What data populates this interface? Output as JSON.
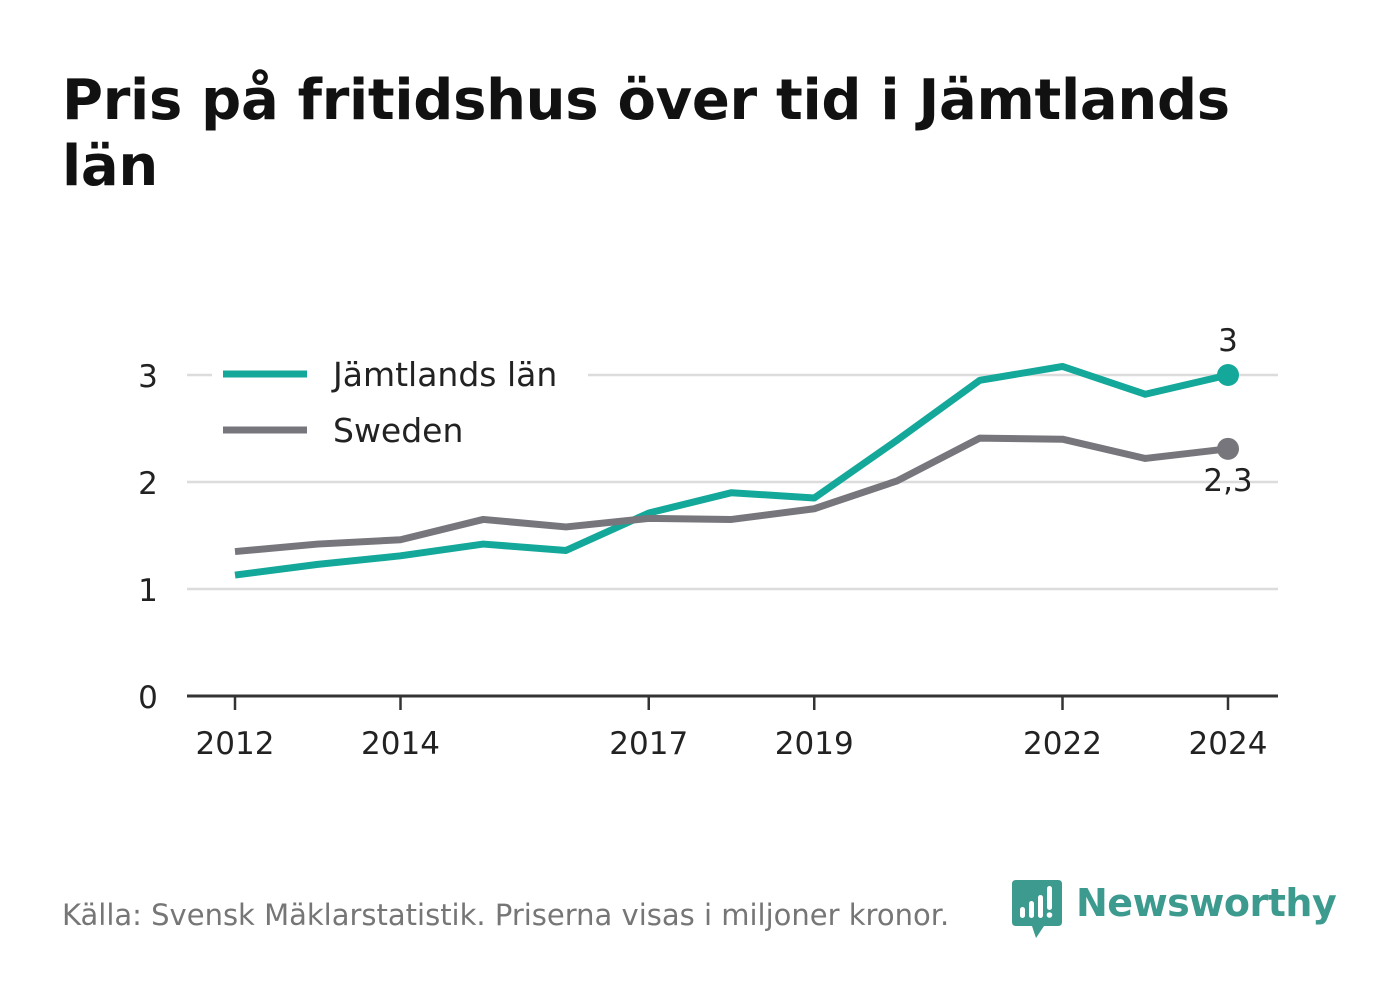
{
  "title": "Pris på fritidshus över tid i Jämtlands län",
  "source": "Källa: Svensk Mäklarstatistik. Priserna visas i miljoner kronor.",
  "brand": {
    "name": "Newsworthy",
    "color": "#3c9a8f",
    "icon": "newsworthy-logo-icon"
  },
  "chart_data": {
    "type": "line",
    "x": [
      2012,
      2013,
      2014,
      2015,
      2016,
      2017,
      2018,
      2019,
      2020,
      2021,
      2022,
      2023,
      2024
    ],
    "x_ticks": [
      "2012",
      "2014",
      "2017",
      "2019",
      "2022",
      "2024"
    ],
    "y_ticks": [
      "0",
      "1",
      "2",
      "3"
    ],
    "ylim": [
      0,
      3.3
    ],
    "grid": true,
    "legend_position": "top-left",
    "series": [
      {
        "name": "Jämtlands län",
        "color": "#13a899",
        "values": [
          1.13,
          1.23,
          1.31,
          1.42,
          1.36,
          1.71,
          1.9,
          1.85,
          2.39,
          2.95,
          3.08,
          2.82,
          3.0
        ],
        "end_label": "3"
      },
      {
        "name": "Sweden",
        "color": "#77767c",
        "values": [
          1.35,
          1.42,
          1.46,
          1.65,
          1.58,
          1.66,
          1.65,
          1.75,
          2.01,
          2.41,
          2.4,
          2.22,
          2.31
        ],
        "end_label": "2,3"
      }
    ]
  }
}
